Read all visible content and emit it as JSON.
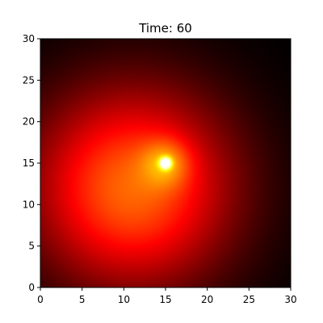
{
  "chart_data": {
    "type": "heatmap",
    "title_prefix": "Time:",
    "time": 60,
    "title": "Time: 60",
    "xlabel": "",
    "ylabel": "",
    "xlim": [
      0,
      30
    ],
    "ylim": [
      0,
      30
    ],
    "x_ticks": [
      0,
      5,
      10,
      15,
      20,
      25,
      30
    ],
    "y_ticks": [
      0,
      5,
      10,
      15,
      20,
      25,
      30
    ],
    "grid": false,
    "colormap": "hot",
    "colormap_stops": [
      "#000000",
      "#ff0000",
      "#ffff00",
      "#ffffff"
    ],
    "source_point": [
      15,
      15
    ],
    "heat_center": [
      11,
      12
    ],
    "field_peak": 0.52,
    "field_spread": 8.5
  }
}
